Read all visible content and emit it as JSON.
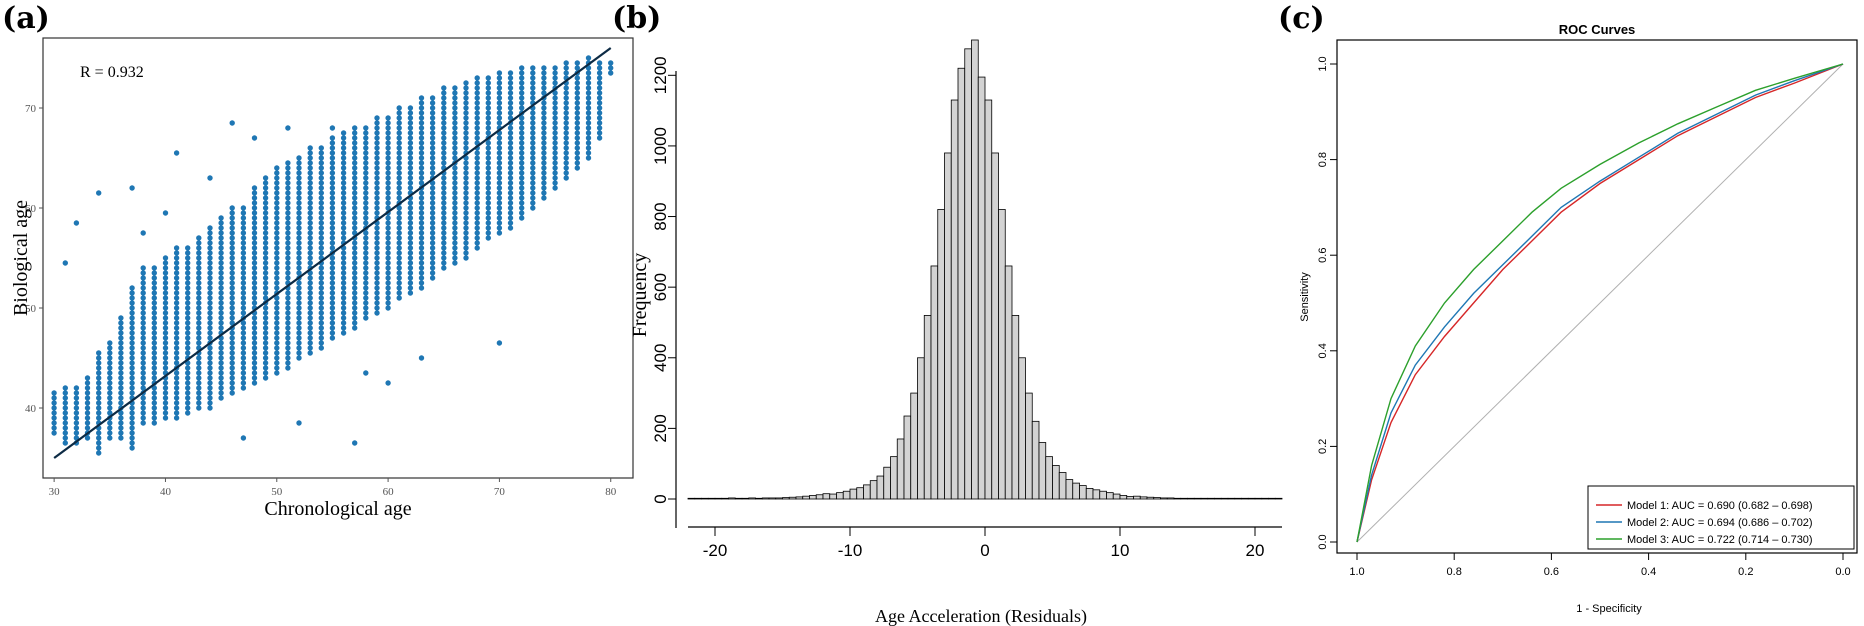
{
  "panels": {
    "a": "(a)",
    "b": "(b)",
    "c": "(c)"
  },
  "chart_data": [
    {
      "type": "scatter",
      "panel": "(a)",
      "xlabel": "Chronological age",
      "ylabel": "Biological age",
      "annotation": "R = 0.932",
      "xlim": [
        29,
        82
      ],
      "ylim": [
        33,
        77
      ],
      "xticks": [
        30,
        40,
        50,
        60,
        70,
        80
      ],
      "yticks": [
        40,
        50,
        60,
        70
      ],
      "point_color": "#1f77b4",
      "line_color": "#0d2b45",
      "fit_line": [
        [
          30,
          35
        ],
        [
          80,
          76
        ]
      ],
      "x_range_of_points": [
        30,
        80
      ],
      "column_spreads": [
        [
          30,
          37.5,
          41.5
        ],
        [
          31,
          36.5,
          42
        ],
        [
          32,
          36.5,
          42
        ],
        [
          33,
          37,
          43
        ],
        [
          34,
          35.5,
          45.5
        ],
        [
          35,
          37,
          46.5
        ],
        [
          36,
          37,
          49
        ],
        [
          37,
          36,
          52
        ],
        [
          38,
          38.5,
          54
        ],
        [
          39,
          38.5,
          54
        ],
        [
          40,
          39,
          55
        ],
        [
          41,
          39,
          56
        ],
        [
          42,
          39.5,
          56
        ],
        [
          43,
          40,
          57
        ],
        [
          44,
          40,
          58
        ],
        [
          45,
          41,
          59
        ],
        [
          46,
          41.5,
          60
        ],
        [
          47,
          42,
          60
        ],
        [
          48,
          42.5,
          62
        ],
        [
          49,
          43,
          63
        ],
        [
          50,
          43.5,
          64
        ],
        [
          51,
          44,
          64.5
        ],
        [
          52,
          45,
          65
        ],
        [
          53,
          45.5,
          66
        ],
        [
          54,
          46,
          66
        ],
        [
          55,
          47,
          67
        ],
        [
          56,
          47.5,
          67.5
        ],
        [
          57,
          48,
          68
        ],
        [
          58,
          49,
          68
        ],
        [
          59,
          49.5,
          69
        ],
        [
          60,
          50,
          69
        ],
        [
          61,
          51,
          70
        ],
        [
          62,
          51.5,
          70
        ],
        [
          63,
          52,
          71
        ],
        [
          64,
          53,
          71
        ],
        [
          65,
          54,
          72
        ],
        [
          66,
          54.5,
          72
        ],
        [
          67,
          55,
          72.5
        ],
        [
          68,
          56,
          73
        ],
        [
          69,
          57,
          73
        ],
        [
          70,
          57.5,
          73.5
        ],
        [
          71,
          58,
          73.5
        ],
        [
          72,
          59,
          74
        ],
        [
          73,
          60,
          74
        ],
        [
          74,
          61,
          74
        ],
        [
          75,
          62,
          74
        ],
        [
          76,
          63,
          74.5
        ],
        [
          77,
          64,
          74.5
        ],
        [
          78,
          65,
          75
        ],
        [
          79,
          67,
          74.5
        ],
        [
          80,
          73.5,
          74.5
        ]
      ],
      "outliers": [
        [
          31,
          54.5
        ],
        [
          32,
          58.5
        ],
        [
          34,
          61.5
        ],
        [
          37,
          62
        ],
        [
          38,
          57.5
        ],
        [
          40,
          59.5
        ],
        [
          41,
          65.5
        ],
        [
          44,
          63
        ],
        [
          46,
          68.5
        ],
        [
          48,
          67
        ],
        [
          51,
          68
        ],
        [
          55,
          68
        ],
        [
          57,
          36.5
        ],
        [
          47,
          37
        ],
        [
          52,
          38.5
        ],
        [
          70,
          46.5
        ],
        [
          63,
          45
        ],
        [
          60,
          42.5
        ],
        [
          58,
          43.5
        ]
      ]
    },
    {
      "type": "bar",
      "panel": "(b)",
      "xlabel": "Age Acceleration (Residuals)",
      "ylabel": "Frequency",
      "xlim": [
        -22,
        22
      ],
      "ylim": [
        0,
        1300
      ],
      "xticks": [
        -20,
        -10,
        0,
        10,
        20
      ],
      "yticks": [
        0,
        200,
        400,
        600,
        800,
        1000,
        1200
      ],
      "bar_color": "#d3d3d3",
      "bin_width": 0.5,
      "bin_start": -22,
      "values": [
        2,
        2,
        2,
        2,
        2,
        2,
        3,
        2,
        2,
        3,
        2,
        3,
        3,
        3,
        4,
        5,
        6,
        8,
        10,
        12,
        15,
        14,
        18,
        22,
        28,
        32,
        40,
        52,
        65,
        90,
        120,
        170,
        235,
        300,
        400,
        520,
        660,
        820,
        980,
        1130,
        1220,
        1275,
        1300,
        1195,
        1130,
        980,
        820,
        660,
        520,
        400,
        300,
        220,
        160,
        120,
        95,
        75,
        55,
        45,
        38,
        30,
        26,
        22,
        18,
        14,
        10,
        7,
        8,
        6,
        5,
        4,
        3,
        3,
        2,
        2,
        2,
        2,
        2,
        2,
        2,
        2,
        2,
        2,
        2,
        2,
        2,
        2,
        2,
        2
      ]
    },
    {
      "type": "line",
      "panel": "(c)",
      "title": "ROC Curves",
      "xlabel": "1 - Specificity",
      "ylabel": "Sensitivity",
      "xlim": [
        1.0,
        0.0
      ],
      "ylim": [
        0.0,
        1.0
      ],
      "xticks": [
        "1.0",
        "0.8",
        "0.6",
        "0.4",
        "0.2",
        "0.0"
      ],
      "yticks": [
        "0.0",
        "0.2",
        "0.4",
        "0.6",
        "0.8",
        "1.0"
      ],
      "reference_line_color": "#b0b0b0",
      "legend_position": "bottom-right",
      "series": [
        {
          "name": "Model 1: AUC = 0.690 (0.682 – 0.698)",
          "color": "#d62728",
          "points": [
            [
              1.0,
              0.0
            ],
            [
              0.97,
              0.13
            ],
            [
              0.93,
              0.25
            ],
            [
              0.88,
              0.35
            ],
            [
              0.82,
              0.43
            ],
            [
              0.76,
              0.5
            ],
            [
              0.7,
              0.57
            ],
            [
              0.64,
              0.63
            ],
            [
              0.58,
              0.69
            ],
            [
              0.5,
              0.75
            ],
            [
              0.42,
              0.8
            ],
            [
              0.34,
              0.85
            ],
            [
              0.26,
              0.89
            ],
            [
              0.18,
              0.93
            ],
            [
              0.1,
              0.96
            ],
            [
              0.0,
              1.0
            ]
          ]
        },
        {
          "name": "Model 2: AUC = 0.694 (0.686 – 0.702)",
          "color": "#1f77b4",
          "points": [
            [
              1.0,
              0.0
            ],
            [
              0.97,
              0.14
            ],
            [
              0.93,
              0.27
            ],
            [
              0.88,
              0.37
            ],
            [
              0.82,
              0.45
            ],
            [
              0.76,
              0.52
            ],
            [
              0.7,
              0.58
            ],
            [
              0.64,
              0.64
            ],
            [
              0.58,
              0.7
            ],
            [
              0.5,
              0.755
            ],
            [
              0.42,
              0.805
            ],
            [
              0.34,
              0.855
            ],
            [
              0.26,
              0.895
            ],
            [
              0.18,
              0.935
            ],
            [
              0.1,
              0.965
            ],
            [
              0.0,
              1.0
            ]
          ]
        },
        {
          "name": "Model 3: AUC = 0.722 (0.714 – 0.730)",
          "color": "#2ca02c",
          "points": [
            [
              1.0,
              0.0
            ],
            [
              0.97,
              0.16
            ],
            [
              0.93,
              0.3
            ],
            [
              0.88,
              0.41
            ],
            [
              0.82,
              0.5
            ],
            [
              0.76,
              0.57
            ],
            [
              0.7,
              0.63
            ],
            [
              0.64,
              0.69
            ],
            [
              0.58,
              0.74
            ],
            [
              0.5,
              0.79
            ],
            [
              0.42,
              0.835
            ],
            [
              0.34,
              0.875
            ],
            [
              0.26,
              0.91
            ],
            [
              0.18,
              0.945
            ],
            [
              0.1,
              0.97
            ],
            [
              0.0,
              1.0
            ]
          ]
        }
      ]
    }
  ]
}
